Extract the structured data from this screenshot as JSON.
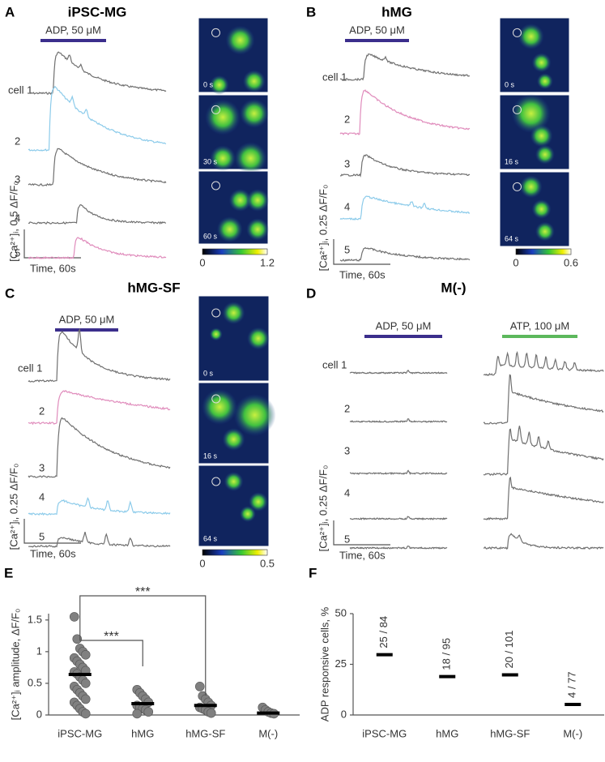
{
  "panels": [
    {
      "letter": "A",
      "title": "iPSC-MG",
      "stimuli": [
        "ADP, 50 μM"
      ],
      "cells": [
        "cell 1",
        "2",
        "3",
        "4",
        "5"
      ],
      "scale_y": "[Ca²⁺]ᵢ, 0.5 ΔF/F₀",
      "scale_x": "Time, 60s",
      "timestamps": [
        "0 s",
        "30 s",
        "60 s"
      ],
      "colorbar": [
        0,
        1.2
      ]
    },
    {
      "letter": "B",
      "title": "hMG",
      "stimuli": [
        "ADP, 50 μM"
      ],
      "cells": [
        "cell 1",
        "2",
        "3",
        "4",
        "5"
      ],
      "scale_y": "[Ca²⁺]ᵢ, 0.25 ΔF/F₀",
      "scale_x": "Time, 60s",
      "timestamps": [
        "0 s",
        "16 s",
        "64 s"
      ],
      "colorbar": [
        0,
        0.6
      ]
    },
    {
      "letter": "C",
      "title": "hMG-SF",
      "stimuli": [
        "ADP, 50 μM"
      ],
      "cells": [
        "cell 1",
        "2",
        "3",
        "4",
        "5"
      ],
      "scale_y": "[Ca²⁺]ᵢ, 0.25 ΔF/F₀",
      "scale_x": "Time, 60s",
      "timestamps": [
        "0 s",
        "16 s",
        "64 s"
      ],
      "colorbar": [
        0,
        0.5
      ]
    },
    {
      "letter": "D",
      "title": "M(-)",
      "stimuli": [
        "ADP, 50 μM",
        "ATP, 100 μM"
      ],
      "cells": [
        "cell 1",
        "2",
        "3",
        "4",
        "5"
      ],
      "scale_y": "[Ca²⁺]ᵢ, 0.25 ΔF/F₀",
      "scale_x": "Time, 60s"
    }
  ],
  "chart_data": [
    {
      "type": "strip",
      "letter": "E",
      "y_label": "[Ca²⁺]ᵢ amplitude, ΔF/F₀",
      "categories": [
        "iPSC-MG",
        "hMG",
        "hMG-SF",
        "M(-)"
      ],
      "points": [
        [
          1.55,
          1.2,
          1.05,
          1.0,
          0.95,
          0.9,
          0.85,
          0.8,
          0.75,
          0.7,
          0.68,
          0.65,
          0.6,
          0.55,
          0.5,
          0.45,
          0.4,
          0.35,
          0.3,
          0.25,
          0.2,
          0.15,
          0.1,
          0.05,
          0.02
        ],
        [
          0.4,
          0.35,
          0.3,
          0.25,
          0.2,
          0.15,
          0.12,
          0.1,
          0.08,
          0.05,
          0.02
        ],
        [
          0.45,
          0.3,
          0.25,
          0.2,
          0.15,
          0.12,
          0.1,
          0.08,
          0.05,
          0.03
        ],
        [
          0.12,
          0.08,
          0.05,
          0.03,
          0.02
        ]
      ],
      "means": [
        0.64,
        0.18,
        0.15,
        0.03
      ],
      "color": "#808080",
      "annotations": [
        "***",
        "***"
      ],
      "ylim": [
        0,
        1.6
      ],
      "yticks": [
        0,
        0.5,
        1,
        1.5
      ]
    },
    {
      "type": "marker",
      "letter": "F",
      "y_label": "ADP responsive cells, %",
      "categories": [
        "iPSC-MG",
        "hMG",
        "hMG-SF",
        "M(-)"
      ],
      "values": [
        29.76,
        18.95,
        19.8,
        5.19
      ],
      "fractions": [
        "25 / 84",
        "18 / 95",
        "20 / 101",
        "4 / 77"
      ],
      "ylim": [
        0,
        50
      ],
      "yticks": [
        0,
        25,
        50
      ]
    }
  ]
}
